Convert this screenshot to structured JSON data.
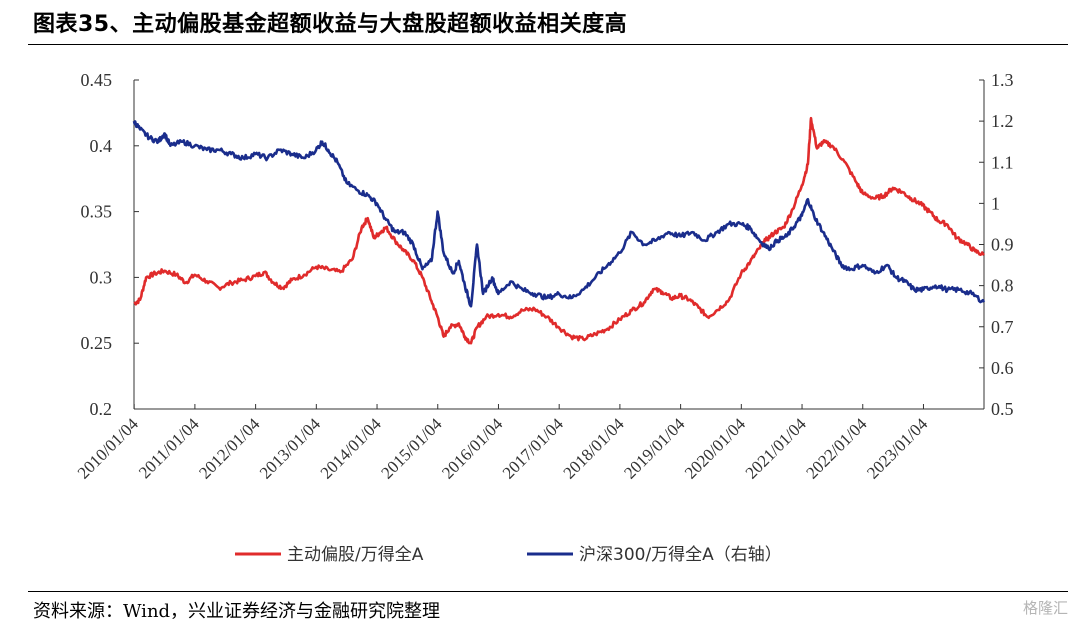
{
  "header": {
    "title": "图表35、主动偏股基金超额收益与大盘股超额收益相关度高"
  },
  "footer": {
    "source": "资料来源：Wind，兴业证券经济与金融研究院整理",
    "watermark": "格隆汇"
  },
  "colors": {
    "red": "#e02b2b",
    "blue": "#1a2d8c",
    "axis": "#333333"
  },
  "chart_data": {
    "type": "line",
    "title": "",
    "x_range": [
      "2010/01/04",
      "2023/12/29"
    ],
    "x_tick_labels": [
      "2010/01/04",
      "2011/01/04",
      "2012/01/04",
      "2013/01/04",
      "2014/01/04",
      "2015/01/04",
      "2016/01/04",
      "2017/01/04",
      "2018/01/04",
      "2019/01/04",
      "2020/01/04",
      "2021/01/04",
      "2022/01/04",
      "2023/01/04"
    ],
    "y_left": {
      "min": 0.2,
      "max": 0.45,
      "tick_labels": [
        "0.45",
        "0.4",
        "0.35",
        "0.3",
        "0.25",
        "0.2"
      ]
    },
    "y_right": {
      "min": 0.5,
      "max": 1.3,
      "tick_labels": [
        "1.3",
        "1.2",
        "1.1",
        "1",
        "0.9",
        "0.8",
        "0.7",
        "0.6",
        "0.5"
      ]
    },
    "series": [
      {
        "name": "主动偏股/万得全A",
        "axis": "left",
        "color": "#e02b2b",
        "points": [
          [
            2010.0,
            0.28
          ],
          [
            2010.1,
            0.283
          ],
          [
            2010.2,
            0.3
          ],
          [
            2010.35,
            0.303
          ],
          [
            2010.5,
            0.305
          ],
          [
            2010.7,
            0.302
          ],
          [
            2010.85,
            0.296
          ],
          [
            2011.0,
            0.302
          ],
          [
            2011.2,
            0.297
          ],
          [
            2011.4,
            0.292
          ],
          [
            2011.6,
            0.296
          ],
          [
            2011.8,
            0.298
          ],
          [
            2012.0,
            0.301
          ],
          [
            2012.15,
            0.304
          ],
          [
            2012.3,
            0.296
          ],
          [
            2012.45,
            0.292
          ],
          [
            2012.6,
            0.298
          ],
          [
            2012.8,
            0.302
          ],
          [
            2013.0,
            0.308
          ],
          [
            2013.2,
            0.306
          ],
          [
            2013.4,
            0.304
          ],
          [
            2013.6,
            0.314
          ],
          [
            2013.75,
            0.338
          ],
          [
            2013.85,
            0.345
          ],
          [
            2013.95,
            0.33
          ],
          [
            2014.05,
            0.334
          ],
          [
            2014.15,
            0.338
          ],
          [
            2014.3,
            0.328
          ],
          [
            2014.45,
            0.32
          ],
          [
            2014.6,
            0.313
          ],
          [
            2014.75,
            0.3
          ],
          [
            2014.9,
            0.282
          ],
          [
            2015.0,
            0.27
          ],
          [
            2015.1,
            0.255
          ],
          [
            2015.2,
            0.262
          ],
          [
            2015.35,
            0.265
          ],
          [
            2015.45,
            0.255
          ],
          [
            2015.55,
            0.25
          ],
          [
            2015.65,
            0.262
          ],
          [
            2015.8,
            0.27
          ],
          [
            2016.0,
            0.272
          ],
          [
            2016.2,
            0.27
          ],
          [
            2016.4,
            0.275
          ],
          [
            2016.6,
            0.276
          ],
          [
            2016.8,
            0.27
          ],
          [
            2017.0,
            0.262
          ],
          [
            2017.2,
            0.255
          ],
          [
            2017.4,
            0.253
          ],
          [
            2017.6,
            0.257
          ],
          [
            2017.8,
            0.261
          ],
          [
            2018.0,
            0.268
          ],
          [
            2018.2,
            0.275
          ],
          [
            2018.4,
            0.281
          ],
          [
            2018.55,
            0.291
          ],
          [
            2018.7,
            0.289
          ],
          [
            2018.85,
            0.284
          ],
          [
            2019.0,
            0.286
          ],
          [
            2019.15,
            0.283
          ],
          [
            2019.3,
            0.277
          ],
          [
            2019.45,
            0.27
          ],
          [
            2019.6,
            0.275
          ],
          [
            2019.8,
            0.283
          ],
          [
            2020.0,
            0.303
          ],
          [
            2020.15,
            0.312
          ],
          [
            2020.3,
            0.322
          ],
          [
            2020.4,
            0.328
          ],
          [
            2020.55,
            0.334
          ],
          [
            2020.7,
            0.338
          ],
          [
            2020.85,
            0.352
          ],
          [
            2021.0,
            0.37
          ],
          [
            2021.1,
            0.386
          ],
          [
            2021.15,
            0.421
          ],
          [
            2021.25,
            0.398
          ],
          [
            2021.35,
            0.403
          ],
          [
            2021.5,
            0.4
          ],
          [
            2021.7,
            0.388
          ],
          [
            2021.9,
            0.372
          ],
          [
            2022.0,
            0.364
          ],
          [
            2022.2,
            0.36
          ],
          [
            2022.35,
            0.362
          ],
          [
            2022.5,
            0.368
          ],
          [
            2022.65,
            0.365
          ],
          [
            2022.8,
            0.36
          ],
          [
            2022.95,
            0.356
          ],
          [
            2023.1,
            0.35
          ],
          [
            2023.25,
            0.343
          ],
          [
            2023.4,
            0.34
          ],
          [
            2023.55,
            0.33
          ],
          [
            2023.7,
            0.326
          ],
          [
            2023.85,
            0.32
          ],
          [
            2024.0,
            0.317
          ]
        ]
      },
      {
        "name": "沪深300/万得全A（右轴）",
        "axis": "right",
        "color": "#1a2d8c",
        "points": [
          [
            2010.0,
            1.2
          ],
          [
            2010.1,
            1.18
          ],
          [
            2010.25,
            1.16
          ],
          [
            2010.4,
            1.15
          ],
          [
            2010.5,
            1.17
          ],
          [
            2010.6,
            1.14
          ],
          [
            2010.8,
            1.15
          ],
          [
            2011.0,
            1.14
          ],
          [
            2011.2,
            1.13
          ],
          [
            2011.4,
            1.13
          ],
          [
            2011.6,
            1.12
          ],
          [
            2011.8,
            1.11
          ],
          [
            2012.0,
            1.12
          ],
          [
            2012.2,
            1.11
          ],
          [
            2012.4,
            1.13
          ],
          [
            2012.6,
            1.12
          ],
          [
            2012.8,
            1.11
          ],
          [
            2013.0,
            1.13
          ],
          [
            2013.1,
            1.15
          ],
          [
            2013.2,
            1.13
          ],
          [
            2013.35,
            1.1
          ],
          [
            2013.5,
            1.05
          ],
          [
            2013.7,
            1.03
          ],
          [
            2013.85,
            1.02
          ],
          [
            2014.0,
            1.0
          ],
          [
            2014.15,
            0.96
          ],
          [
            2014.3,
            0.93
          ],
          [
            2014.45,
            0.93
          ],
          [
            2014.6,
            0.9
          ],
          [
            2014.75,
            0.84
          ],
          [
            2014.9,
            0.86
          ],
          [
            2015.0,
            0.98
          ],
          [
            2015.1,
            0.88
          ],
          [
            2015.25,
            0.83
          ],
          [
            2015.35,
            0.86
          ],
          [
            2015.45,
            0.8
          ],
          [
            2015.55,
            0.75
          ],
          [
            2015.65,
            0.9
          ],
          [
            2015.75,
            0.78
          ],
          [
            2015.9,
            0.82
          ],
          [
            2016.0,
            0.78
          ],
          [
            2016.2,
            0.81
          ],
          [
            2016.4,
            0.79
          ],
          [
            2016.6,
            0.78
          ],
          [
            2016.8,
            0.77
          ],
          [
            2017.0,
            0.78
          ],
          [
            2017.2,
            0.77
          ],
          [
            2017.4,
            0.79
          ],
          [
            2017.6,
            0.82
          ],
          [
            2017.8,
            0.85
          ],
          [
            2018.0,
            0.88
          ],
          [
            2018.2,
            0.93
          ],
          [
            2018.4,
            0.9
          ],
          [
            2018.6,
            0.91
          ],
          [
            2018.8,
            0.93
          ],
          [
            2019.0,
            0.92
          ],
          [
            2019.2,
            0.93
          ],
          [
            2019.4,
            0.91
          ],
          [
            2019.6,
            0.93
          ],
          [
            2019.8,
            0.95
          ],
          [
            2020.0,
            0.95
          ],
          [
            2020.15,
            0.94
          ],
          [
            2020.3,
            0.91
          ],
          [
            2020.45,
            0.89
          ],
          [
            2020.6,
            0.91
          ],
          [
            2020.75,
            0.92
          ],
          [
            2020.9,
            0.95
          ],
          [
            2021.0,
            0.97
          ],
          [
            2021.1,
            1.01
          ],
          [
            2021.2,
            0.97
          ],
          [
            2021.35,
            0.93
          ],
          [
            2021.5,
            0.89
          ],
          [
            2021.65,
            0.85
          ],
          [
            2021.8,
            0.84
          ],
          [
            2022.0,
            0.85
          ],
          [
            2022.2,
            0.83
          ],
          [
            2022.4,
            0.85
          ],
          [
            2022.55,
            0.82
          ],
          [
            2022.7,
            0.81
          ],
          [
            2022.85,
            0.79
          ],
          [
            2023.0,
            0.79
          ],
          [
            2023.2,
            0.8
          ],
          [
            2023.4,
            0.79
          ],
          [
            2023.6,
            0.79
          ],
          [
            2023.8,
            0.78
          ],
          [
            2024.0,
            0.76
          ]
        ]
      }
    ]
  }
}
